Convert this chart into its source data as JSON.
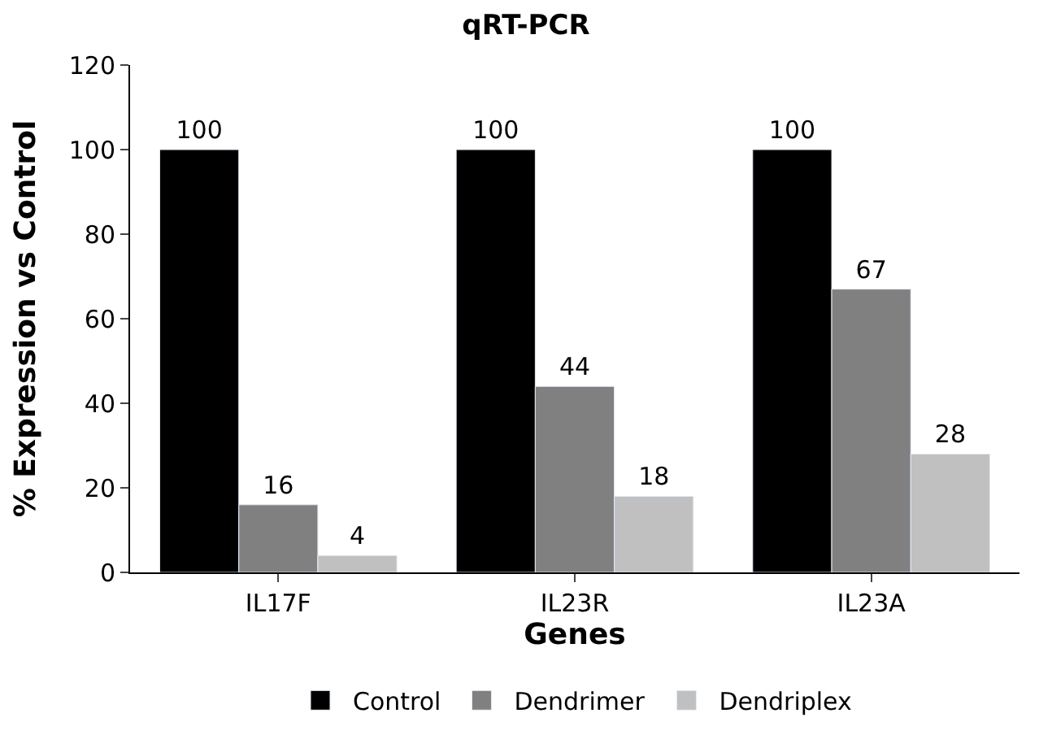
{
  "chart_data": {
    "type": "bar",
    "title": "qRT-PCR",
    "xlabel": "Genes",
    "ylabel": "% Expression vs Control",
    "categories": [
      "IL17F",
      "IL23R",
      "IL23A"
    ],
    "series": [
      {
        "name": "Control",
        "color": "#000000",
        "values": [
          100,
          100,
          100
        ]
      },
      {
        "name": "Dendrimer",
        "color": "#808080",
        "values": [
          16,
          44,
          67
        ]
      },
      {
        "name": "Dendriplex",
        "color": "#c0c0c0",
        "values": [
          4,
          18,
          28
        ]
      }
    ],
    "ylim": [
      0,
      120
    ],
    "yticks": [
      0,
      20,
      40,
      60,
      80,
      100,
      120
    ],
    "legend": "bottom",
    "data_labels": true
  }
}
